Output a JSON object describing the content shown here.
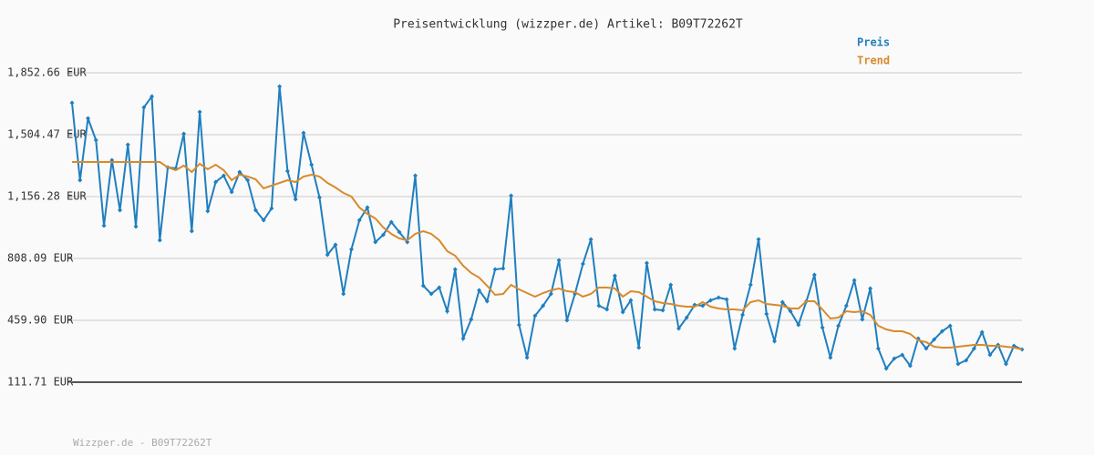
{
  "chart_data": {
    "type": "line",
    "title": "Preisentwicklung (wizzper.de) Artikel: B09T72262T",
    "footer": "Wizzper.de - B09T72262T",
    "ylim": [
      111.71,
      1852.66
    ],
    "yticks": [
      {
        "value": 111.71,
        "label": "111.71 EUR"
      },
      {
        "value": 459.9,
        "label": "459.90 EUR"
      },
      {
        "value": 808.09,
        "label": "808.09 EUR"
      },
      {
        "value": 1156.28,
        "label": "1,156.28 EUR"
      },
      {
        "value": 1504.47,
        "label": "1,504.47 EUR"
      },
      {
        "value": 1852.66,
        "label": "1,852.66 EUR"
      }
    ],
    "grid": true,
    "legend": "top-right",
    "series": [
      {
        "name": "Preis",
        "color": "#1f7fbf",
        "markers": true,
        "values": [
          1683.6,
          1248.4,
          1596.6,
          1473.7,
          992.4,
          1361.1,
          1079.5,
          1448.1,
          987.2,
          1658.1,
          1719.5,
          910.5,
          1320.1,
          1315.0,
          1509.6,
          961.7,
          1632.5,
          1074.3,
          1238.2,
          1274.0,
          1181.9,
          1294.5,
          1248.4,
          1079.5,
          1023.1,
          1089.7,
          1775.8,
          1299.6,
          1140.9,
          1514.7,
          1335.5,
          1151.2,
          828.6,
          885.0,
          608.4,
          859.3,
          1023.1,
          1094.8,
          900.2,
          941.2,
          1012.9,
          956.6,
          900.2,
          1274.0,
          654.5,
          608.4,
          644.2,
          511.1,
          746.6,
          357.5,
          465.0,
          628.9,
          567.4,
          746.6,
          751.8,
          1161.4,
          434.3,
          250.0,
          485.5,
          541.8,
          608.4,
          797.8,
          459.9,
          608.4,
          777.4,
          915.6,
          541.8,
          521.3,
          710.8,
          506.0,
          572.5,
          306.3,
          782.5,
          521.3,
          516.2,
          659.6,
          413.8,
          475.3,
          546.9,
          541.8,
          572.5,
          587.9,
          577.7,
          301.2,
          490.6,
          659.6,
          915.6,
          495.7,
          342.1,
          562.3,
          511.1,
          434.3,
          567.4,
          715.9,
          419.0,
          250.0,
          429.2,
          541.8,
          685.2,
          465.0,
          639.1,
          301.2,
          188.5,
          244.8,
          265.3,
          203.9,
          357.5,
          301.2,
          352.4,
          398.4,
          429.2,
          214.1,
          234.6,
          301.2,
          393.3,
          265.3,
          321.6,
          214.1,
          316.5,
          296.0
        ]
      },
      {
        "name": "Trend",
        "color": "#d98a2b",
        "markers": false,
        "values": [
          1350.8,
          1350.8,
          1350.8,
          1350.8,
          1350.8,
          1350.8,
          1350.8,
          1350.8,
          1350.8,
          1350.8,
          1350.8,
          1350.8,
          1320.1,
          1304.8,
          1330.4,
          1294.5,
          1340.6,
          1309.9,
          1335.5,
          1304.8,
          1248.4,
          1279.2,
          1268.9,
          1253.6,
          1202.4,
          1217.7,
          1233.1,
          1248.4,
          1238.2,
          1268.9,
          1279.2,
          1268.9,
          1233.1,
          1207.5,
          1176.7,
          1156.3,
          1094.8,
          1059.0,
          1033.4,
          982.2,
          946.4,
          920.7,
          910.5,
          946.4,
          961.7,
          946.4,
          910.5,
          849.0,
          823.4,
          767.1,
          726.2,
          700.6,
          654.5,
          603.3,
          608.4,
          659.6,
          634.0,
          613.5,
          593.0,
          613.5,
          628.9,
          639.1,
          623.7,
          618.6,
          593.0,
          608.4,
          644.2,
          644.2,
          639.1,
          593.0,
          623.7,
          618.6,
          593.0,
          567.4,
          557.2,
          552.1,
          541.8,
          536.7,
          536.7,
          562.3,
          536.7,
          526.5,
          521.3,
          521.3,
          516.2,
          562.3,
          572.5,
          552.1,
          546.9,
          541.8,
          526.5,
          526.5,
          567.4,
          567.4,
          521.3,
          470.1,
          475.3,
          511.1,
          506.0,
          511.1,
          490.6,
          429.2,
          408.7,
          398.4,
          398.4,
          383.1,
          347.2,
          337.0,
          311.4,
          306.3,
          306.3,
          311.4,
          316.5,
          321.6,
          321.6,
          316.5,
          316.5,
          311.4,
          306.3,
          296.0
        ]
      }
    ]
  }
}
